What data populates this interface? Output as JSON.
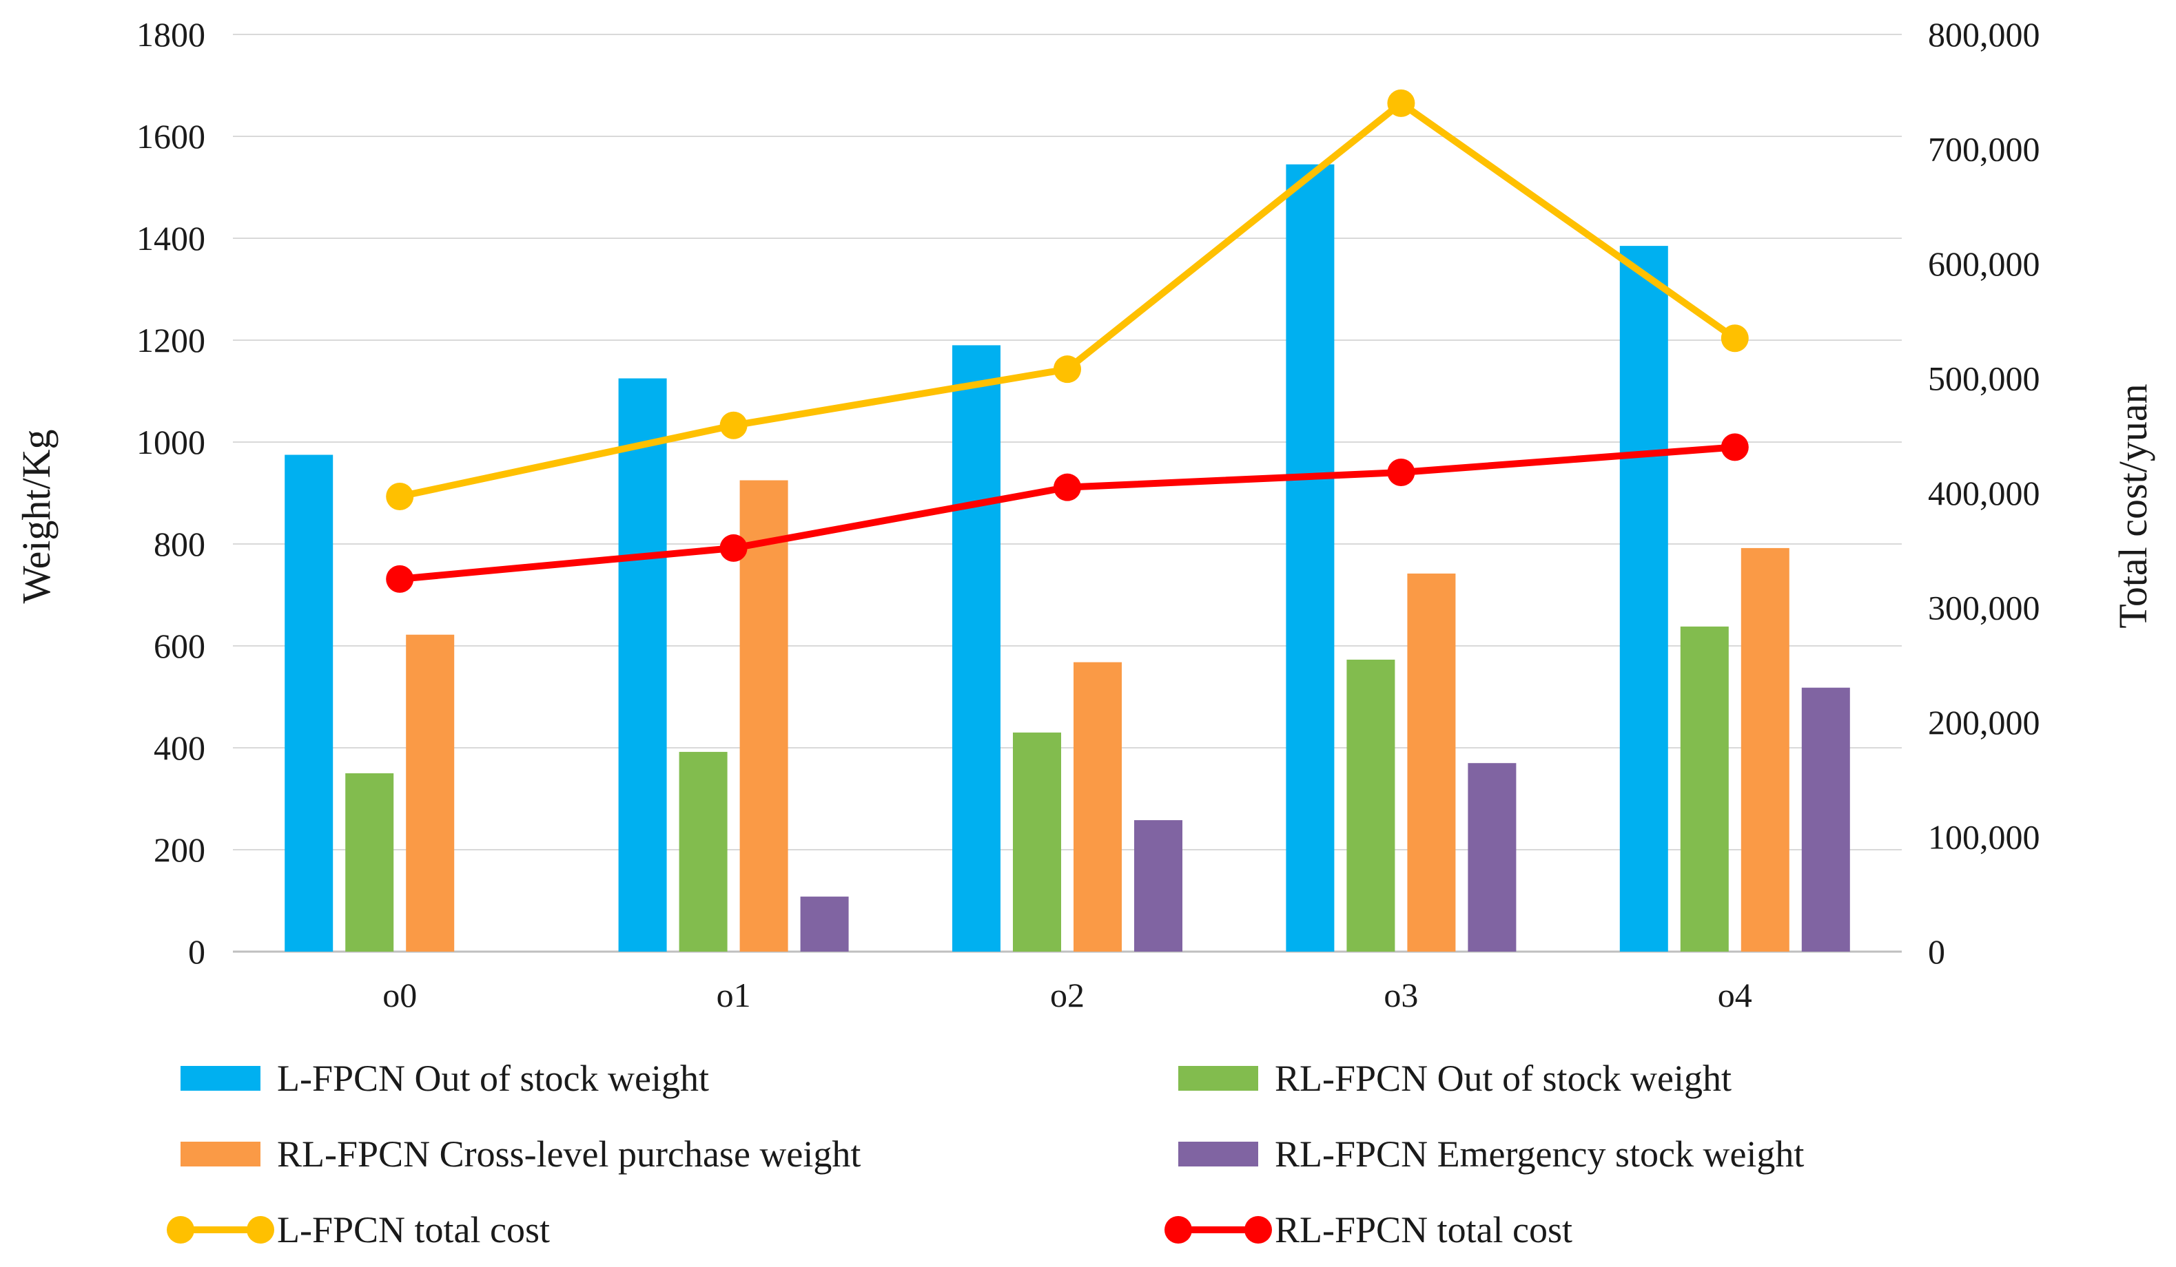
{
  "chart_data": {
    "type": "bar+line",
    "categories": [
      "o0",
      "o1",
      "o2",
      "o3",
      "o4"
    ],
    "bar_series": [
      {
        "name": "L-FPCN Out of stock weight",
        "color": "#00B0F0",
        "values": [
          975,
          1125,
          1190,
          1545,
          1385
        ]
      },
      {
        "name": "RL-FPCN Out of stock weight",
        "color": "#82BC4E",
        "values": [
          350,
          392,
          430,
          573,
          638
        ]
      },
      {
        "name": "RL-FPCN Cross-level purchase weight",
        "color": "#FA9A46",
        "values": [
          622,
          925,
          568,
          742,
          792
        ]
      },
      {
        "name": "RL-FPCN Emergency stock weight",
        "color": "#8064A2",
        "values": [
          0,
          108,
          258,
          370,
          518
        ]
      }
    ],
    "line_series": [
      {
        "name": "L-FPCN total cost",
        "color": "#FFC000",
        "values": [
          397000,
          459000,
          508000,
          740000,
          535000
        ]
      },
      {
        "name": "RL-FPCN total cost",
        "color": "#FF0000",
        "values": [
          325000,
          352000,
          405000,
          418000,
          440000
        ]
      }
    ],
    "y_left": {
      "label": "Weight/Kg",
      "min": 0,
      "max": 1800,
      "ticks": [
        0,
        200,
        400,
        600,
        800,
        1000,
        1200,
        1400,
        1600,
        1800
      ],
      "tick_labels": [
        "0",
        "200",
        "400",
        "600",
        "800",
        "1000",
        "1200",
        "1400",
        "1600",
        "1800"
      ]
    },
    "y_right": {
      "label": "Total cost/yuan",
      "min": 0,
      "max": 800000,
      "ticks": [
        0,
        100000,
        200000,
        300000,
        400000,
        500000,
        600000,
        700000,
        800000
      ],
      "tick_labels": [
        "0",
        "100,000",
        "200,000",
        "300,000",
        "400,000",
        "500,000",
        "600,000",
        "700,000",
        "800,000"
      ]
    },
    "grid": "horizontal",
    "legend_position": "bottom"
  }
}
